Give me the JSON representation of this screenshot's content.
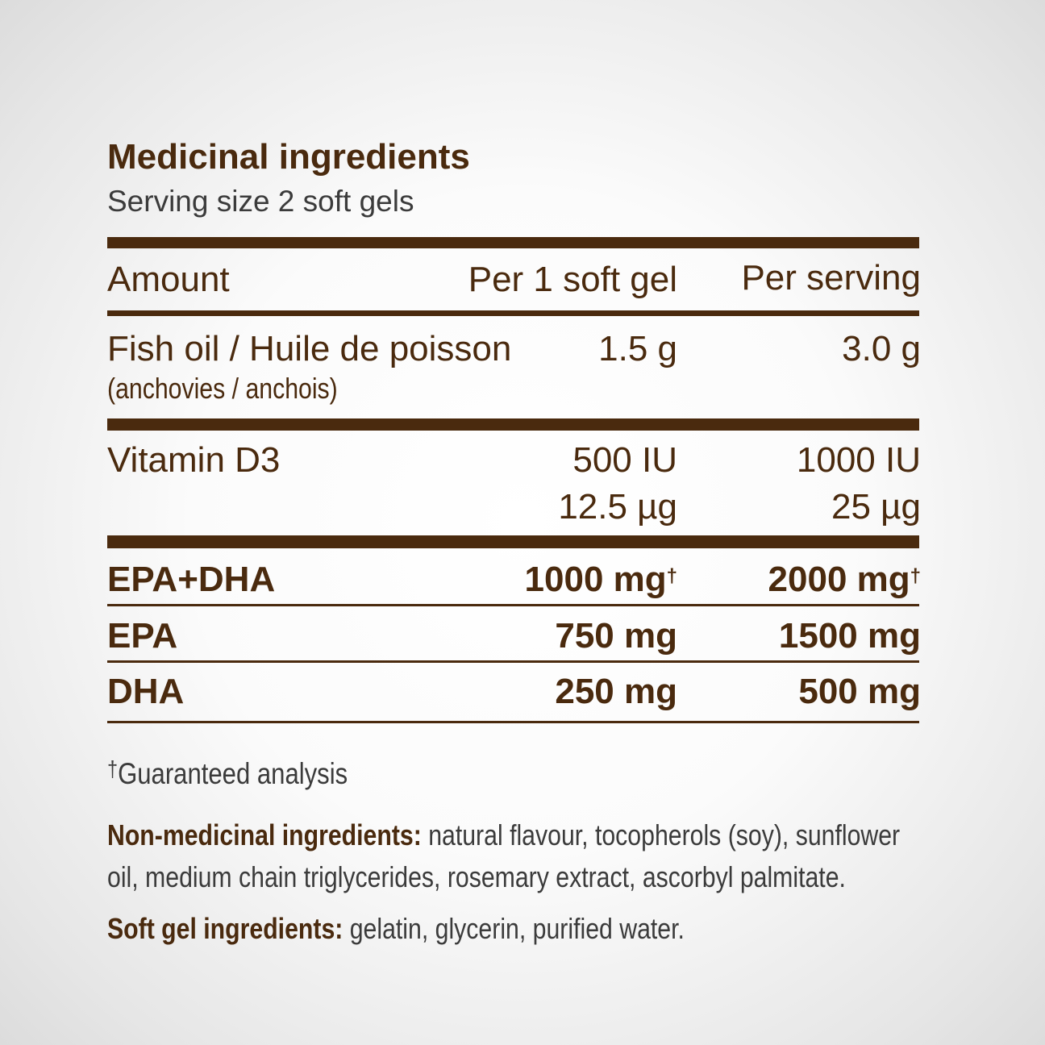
{
  "title": "Medicinal ingredients",
  "serving_size": "Serving size 2 soft gels",
  "colors": {
    "brand_brown": "#4a2a0e"
  },
  "table": {
    "headers": [
      "Amount",
      "Per 1 soft gel",
      "Per serving"
    ],
    "rows": [
      {
        "name": "Fish oil / Huile de poisson",
        "sub": "(anchovies / anchois)",
        "per_gel": "1.5 g",
        "per_serving": "3.0 g"
      },
      {
        "name": "Vitamin D3",
        "per_gel": "500 IU",
        "per_gel_2": "12.5 µg",
        "per_serving": "1000 IU",
        "per_serving_2": "25 µg"
      },
      {
        "name": "EPA+DHA",
        "per_gel": "1000 mg",
        "per_serving": "2000 mg",
        "mark": "†"
      },
      {
        "name": "EPA",
        "per_gel": "750 mg",
        "per_serving": "1500 mg"
      },
      {
        "name": "DHA",
        "per_gel": "250 mg",
        "per_serving": "500 mg"
      }
    ]
  },
  "footnote": {
    "mark": "†",
    "text": "Guaranteed analysis"
  },
  "non_medicinal": {
    "label": "Non-medicinal ingredients:",
    "line1": " natural flavour, tocopherols (soy), sunflower",
    "line2": "oil, medium chain triglycerides, rosemary extract, ascorbyl palmitate."
  },
  "soft_gel": {
    "label": "Soft gel ingredients:",
    "text": " gelatin, glycerin, purified water."
  }
}
